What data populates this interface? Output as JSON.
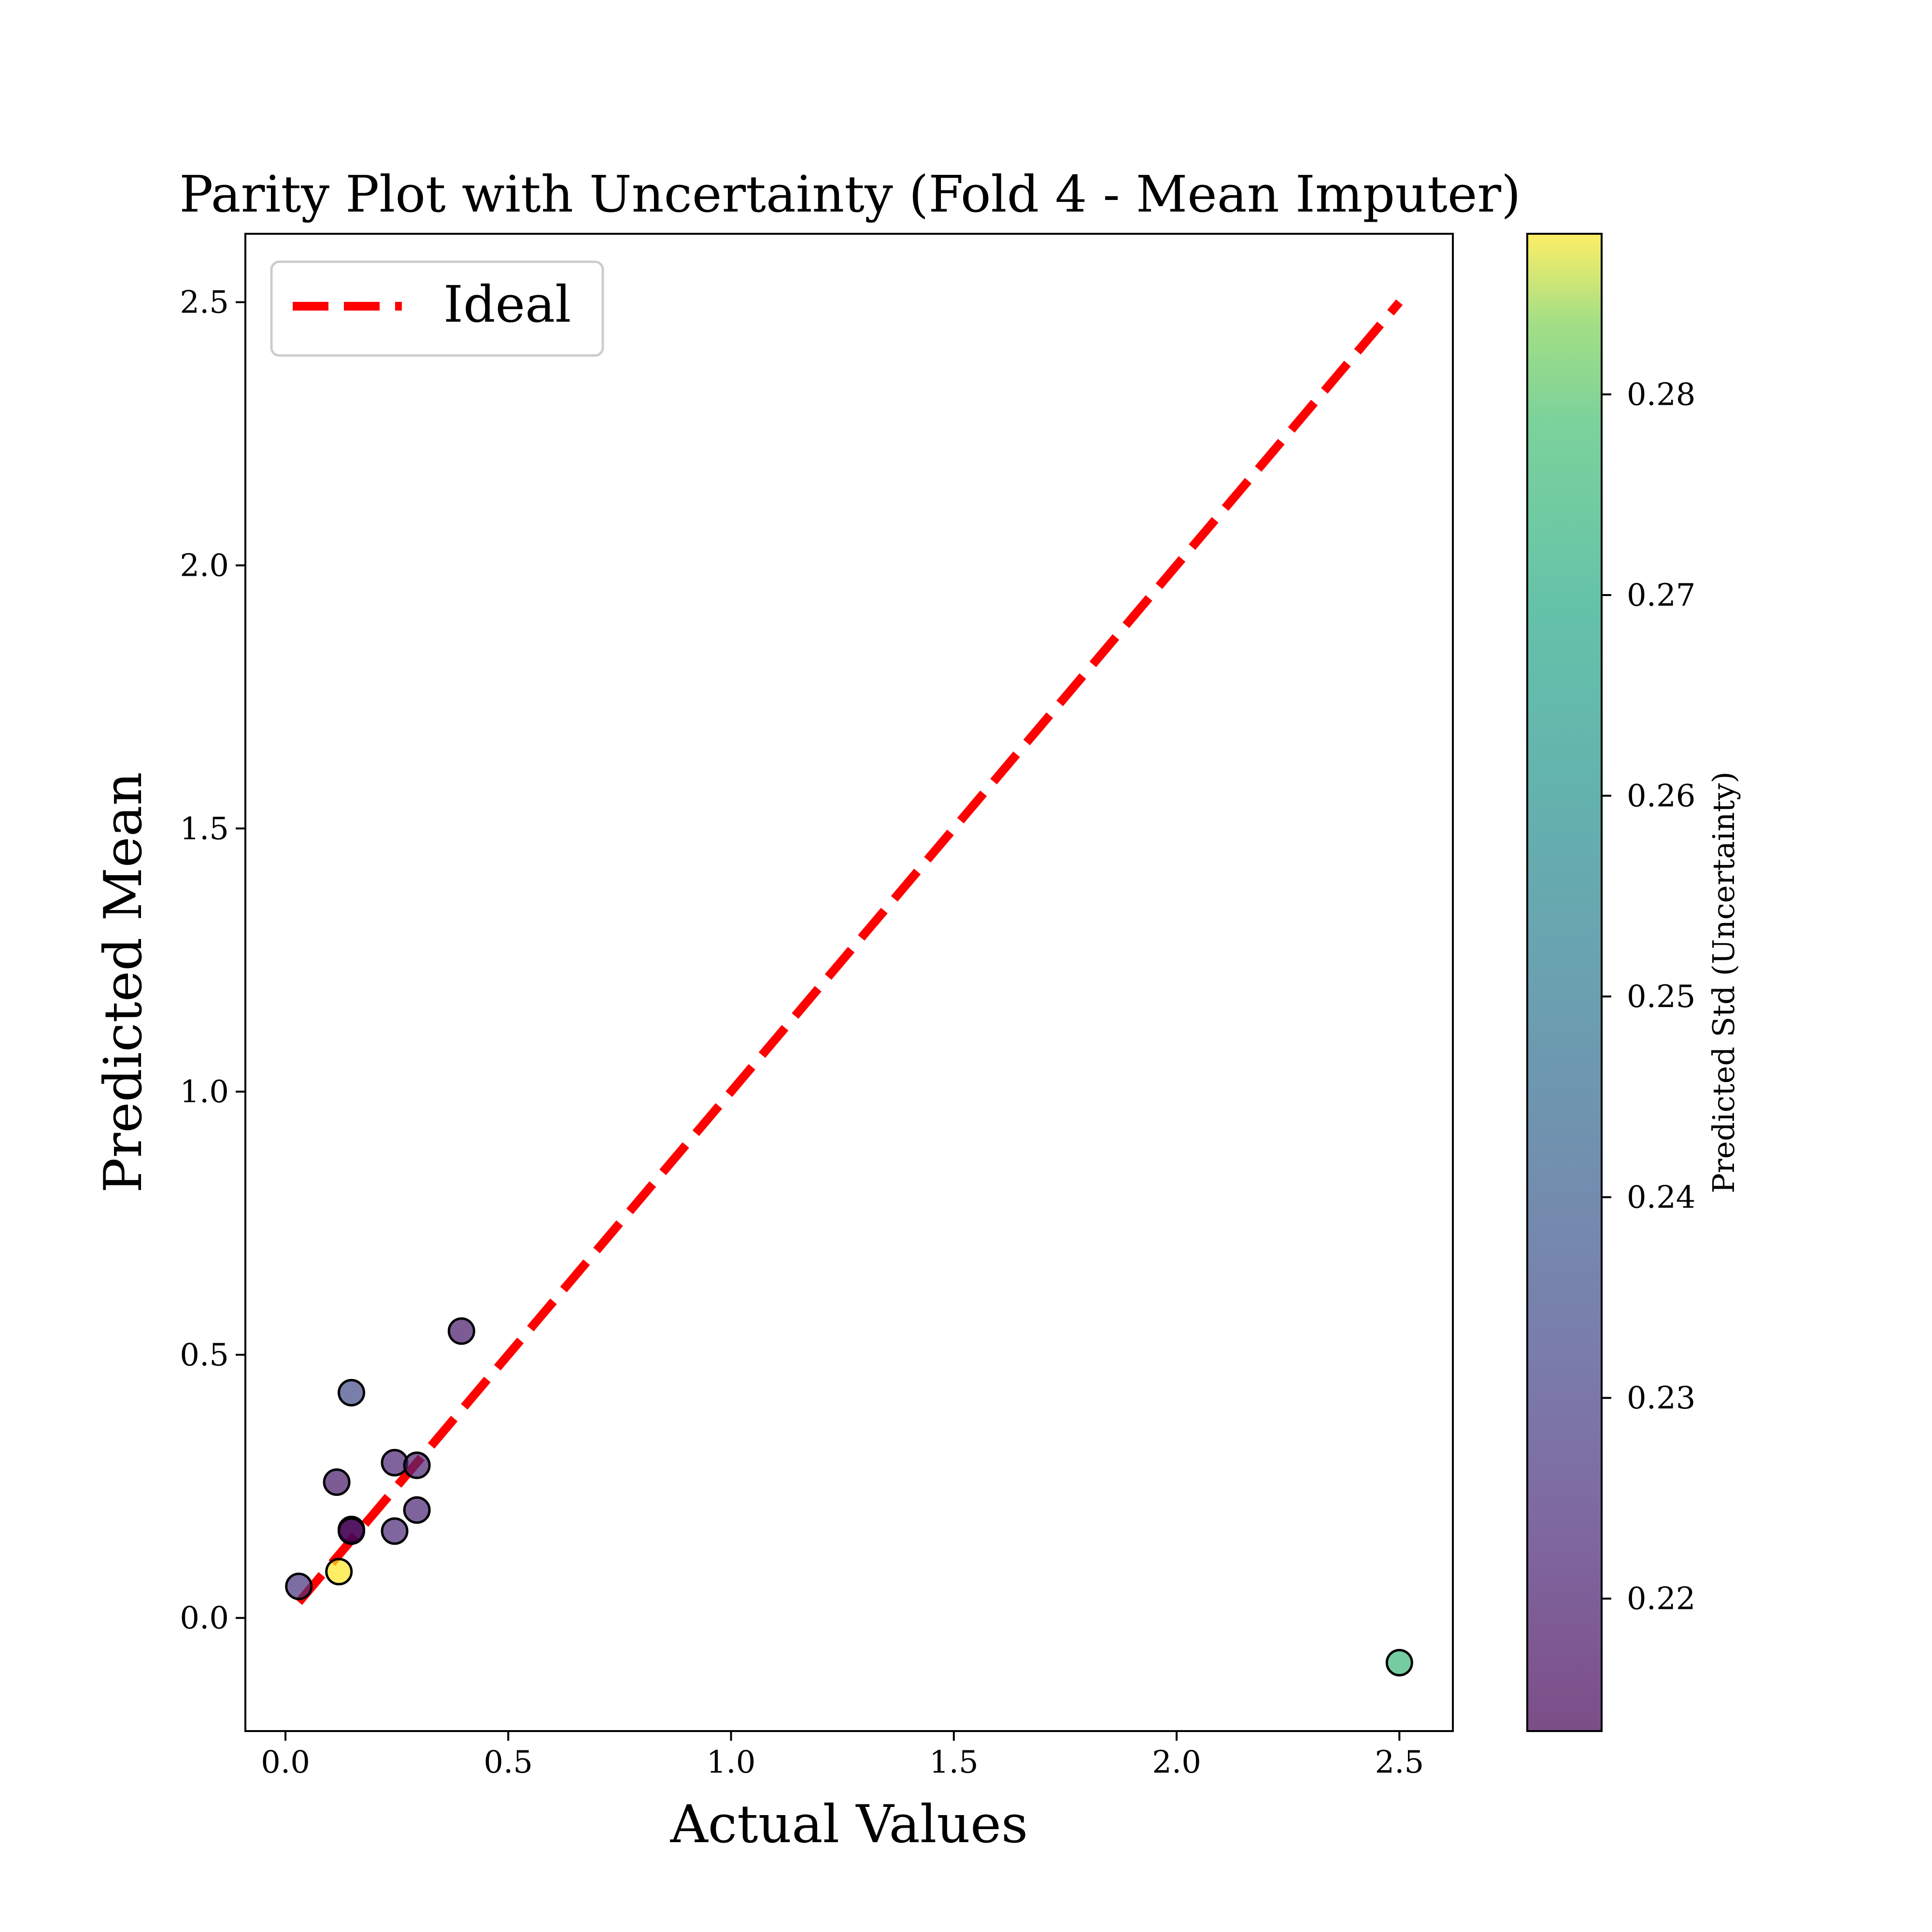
{
  "chart_data": {
    "type": "scatter",
    "title": "Parity Plot with Uncertainty (Fold 4 - Mean Imputer)",
    "xlabel": "Actual Values",
    "ylabel": "Predicted Mean",
    "xlim": [
      -0.09,
      2.62
    ],
    "ylim": [
      -0.215,
      2.63
    ],
    "xticks": [
      0.0,
      0.5,
      1.0,
      1.5,
      2.0,
      2.5
    ],
    "xtick_labels": [
      "0.0",
      "0.5",
      "1.0",
      "1.5",
      "2.0",
      "2.5"
    ],
    "yticks": [
      0.0,
      0.5,
      1.0,
      1.5,
      2.0,
      2.5
    ],
    "ytick_labels": [
      "0.0",
      "0.5",
      "1.0",
      "1.5",
      "2.0",
      "2.5"
    ],
    "grid": false,
    "legend": {
      "placement": "top-left",
      "entries": [
        {
          "label": "Ideal",
          "color": "#ff0000",
          "style": "dashed"
        }
      ]
    },
    "ideal_line": {
      "x": [
        0.03,
        2.5
      ],
      "y": [
        0.03,
        2.5
      ],
      "color": "#ff0000"
    },
    "colorbar": {
      "label": "Predicted Std (Uncertainty)",
      "colormap": "viridis",
      "alpha": 0.7,
      "range": [
        0.2134,
        0.288
      ],
      "ticks": [
        0.22,
        0.23,
        0.24,
        0.25,
        0.26,
        0.27,
        0.28
      ],
      "tick_labels": [
        "0.22",
        "0.23",
        "0.24",
        "0.25",
        "0.26",
        "0.27",
        "0.28"
      ]
    },
    "points": [
      {
        "x": 0.03,
        "y": 0.06,
        "std": 0.226
      },
      {
        "x": 0.12,
        "y": 0.088,
        "std": 0.288
      },
      {
        "x": 0.115,
        "y": 0.258,
        "std": 0.219
      },
      {
        "x": 0.148,
        "y": 0.428,
        "std": 0.233
      },
      {
        "x": 0.148,
        "y": 0.168,
        "std": 0.2134
      },
      {
        "x": 0.148,
        "y": 0.165,
        "std": 0.2134
      },
      {
        "x": 0.245,
        "y": 0.295,
        "std": 0.222
      },
      {
        "x": 0.245,
        "y": 0.165,
        "std": 0.223
      },
      {
        "x": 0.295,
        "y": 0.29,
        "std": 0.222
      },
      {
        "x": 0.295,
        "y": 0.205,
        "std": 0.222
      },
      {
        "x": 0.395,
        "y": 0.545,
        "std": 0.219
      },
      {
        "x": 2.5,
        "y": -0.085,
        "std": 0.276
      }
    ]
  }
}
